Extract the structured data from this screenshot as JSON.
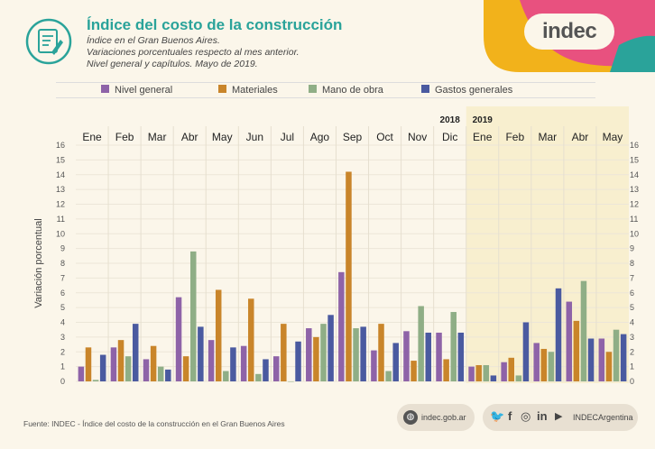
{
  "header": {
    "title": "Índice del costo de la construcción",
    "subtitle_lines": [
      "Índice en el Gran Buenos Aires.",
      "Variaciones porcentuales respecto al mes anterior.",
      "Nivel general y capítulos. Mayo de 2019."
    ],
    "brand": "indec"
  },
  "chart_data": {
    "type": "bar",
    "ylabel": "Variación porcentual",
    "ylim": [
      0,
      16
    ],
    "yticks": [
      0,
      1,
      2,
      3,
      4,
      5,
      6,
      7,
      8,
      9,
      10,
      11,
      12,
      13,
      14,
      15,
      16
    ],
    "categories": [
      "Ene",
      "Feb",
      "Mar",
      "Abr",
      "May",
      "Jun",
      "Jul",
      "Ago",
      "Sep",
      "Oct",
      "Nov",
      "Dic",
      "Ene",
      "Feb",
      "Mar",
      "Abr",
      "May"
    ],
    "year_labels": [
      {
        "label": "2018",
        "index": 11
      },
      {
        "label": "2019",
        "index": 12
      }
    ],
    "highlight_from_index": 12,
    "legend_position": "top",
    "series": [
      {
        "name": "Nivel general",
        "color": "#8e63a8",
        "values": [
          1.0,
          2.3,
          1.5,
          5.7,
          2.8,
          2.4,
          1.7,
          3.6,
          7.4,
          2.1,
          3.4,
          3.3,
          1.0,
          1.3,
          2.6,
          5.4,
          2.9
        ]
      },
      {
        "name": "Materiales",
        "color": "#c9852a",
        "values": [
          2.3,
          2.8,
          2.4,
          1.7,
          6.2,
          5.6,
          3.9,
          3.0,
          14.2,
          3.9,
          1.4,
          1.5,
          1.1,
          1.6,
          2.2,
          4.1,
          2.0
        ]
      },
      {
        "name": "Mano de obra",
        "color": "#8fae86",
        "values": [
          0.1,
          1.7,
          1.0,
          8.8,
          0.7,
          0.5,
          0.0,
          3.9,
          3.6,
          0.7,
          5.1,
          4.7,
          1.1,
          0.4,
          2.0,
          6.8,
          3.5
        ]
      },
      {
        "name": "Gastos generales",
        "color": "#4a5aa0",
        "values": [
          1.8,
          3.9,
          0.8,
          3.7,
          2.3,
          1.5,
          2.7,
          4.5,
          3.7,
          2.6,
          3.3,
          3.3,
          0.4,
          4.0,
          6.3,
          2.9,
          3.2
        ]
      }
    ]
  },
  "footer": {
    "source": "Fuente: INDEC - Índice del costo de la construcción en el Gran Buenos Aires",
    "web_icon": "globe-icon",
    "website": "indec.gob.ar",
    "social_icons": [
      "twitter-icon",
      "facebook-icon",
      "instagram-icon",
      "linkedin-icon",
      "youtube-icon"
    ],
    "social_glyphs": [
      "🐦",
      "f",
      "◎",
      "in",
      "▶"
    ],
    "handle": "INDECArgentina"
  },
  "colors": {
    "accent": "#2aa39a",
    "logo_yellow": "#f2b21b",
    "logo_pink": "#e8517f",
    "logo_teal": "#2aa39a",
    "highlight_bg": "#f8efcf"
  }
}
